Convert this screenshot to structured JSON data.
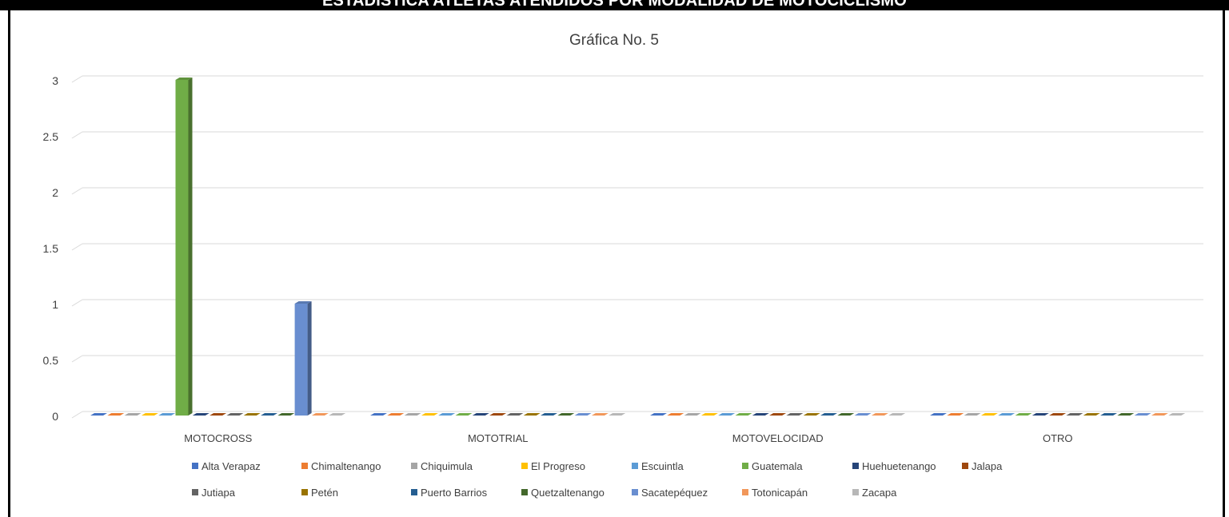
{
  "header": {
    "banner_title": "ESTADISTICA ATLETAS ATENDIDOS POR MODALIDAD DE MOTOCICLISMO"
  },
  "chart_data": {
    "type": "bar",
    "title": "Gráfica No. 5",
    "xlabel": "",
    "ylabel": "",
    "ylim": [
      0,
      3
    ],
    "yticks": [
      "0",
      "0.5",
      "1",
      "1.5",
      "2",
      "2.5",
      "3"
    ],
    "grid": true,
    "legend_position": "bottom",
    "categories": [
      "MOTOCROSS",
      "MOTOTRIAL",
      "MOTOVELOCIDAD",
      "OTRO"
    ],
    "series": [
      {
        "name": "Alta Verapaz",
        "color": "#4472C4",
        "values": [
          0,
          0,
          0,
          0
        ]
      },
      {
        "name": "Chimaltenango",
        "color": "#ED7D31",
        "values": [
          0,
          0,
          0,
          0
        ]
      },
      {
        "name": "Chiquimula",
        "color": "#A5A5A5",
        "values": [
          0,
          0,
          0,
          0
        ]
      },
      {
        "name": "El Progreso",
        "color": "#FFC000",
        "values": [
          0,
          0,
          0,
          0
        ]
      },
      {
        "name": "Escuintla",
        "color": "#5B9BD5",
        "values": [
          0,
          0,
          0,
          0
        ]
      },
      {
        "name": "Guatemala",
        "color": "#70AD47",
        "values": [
          3,
          0,
          0,
          0
        ]
      },
      {
        "name": "Huehuetenango",
        "color": "#264478",
        "values": [
          0,
          0,
          0,
          0
        ]
      },
      {
        "name": "Jalapa",
        "color": "#9E480E",
        "values": [
          0,
          0,
          0,
          0
        ]
      },
      {
        "name": "Jutiapa",
        "color": "#636363",
        "values": [
          0,
          0,
          0,
          0
        ]
      },
      {
        "name": "Petén",
        "color": "#997300",
        "values": [
          0,
          0,
          0,
          0
        ]
      },
      {
        "name": "Puerto Barrios",
        "color": "#255E91",
        "values": [
          0,
          0,
          0,
          0
        ]
      },
      {
        "name": "Quetzaltenango",
        "color": "#43682B",
        "values": [
          0,
          0,
          0,
          0
        ]
      },
      {
        "name": "Sacatepéquez",
        "color": "#698ED0",
        "values": [
          1,
          0,
          0,
          0
        ]
      },
      {
        "name": "Totonicapán",
        "color": "#F1975A",
        "values": [
          0,
          0,
          0,
          0
        ]
      },
      {
        "name": "Zacapa",
        "color": "#B7B7B7",
        "values": [
          0,
          0,
          0,
          0
        ]
      }
    ]
  }
}
